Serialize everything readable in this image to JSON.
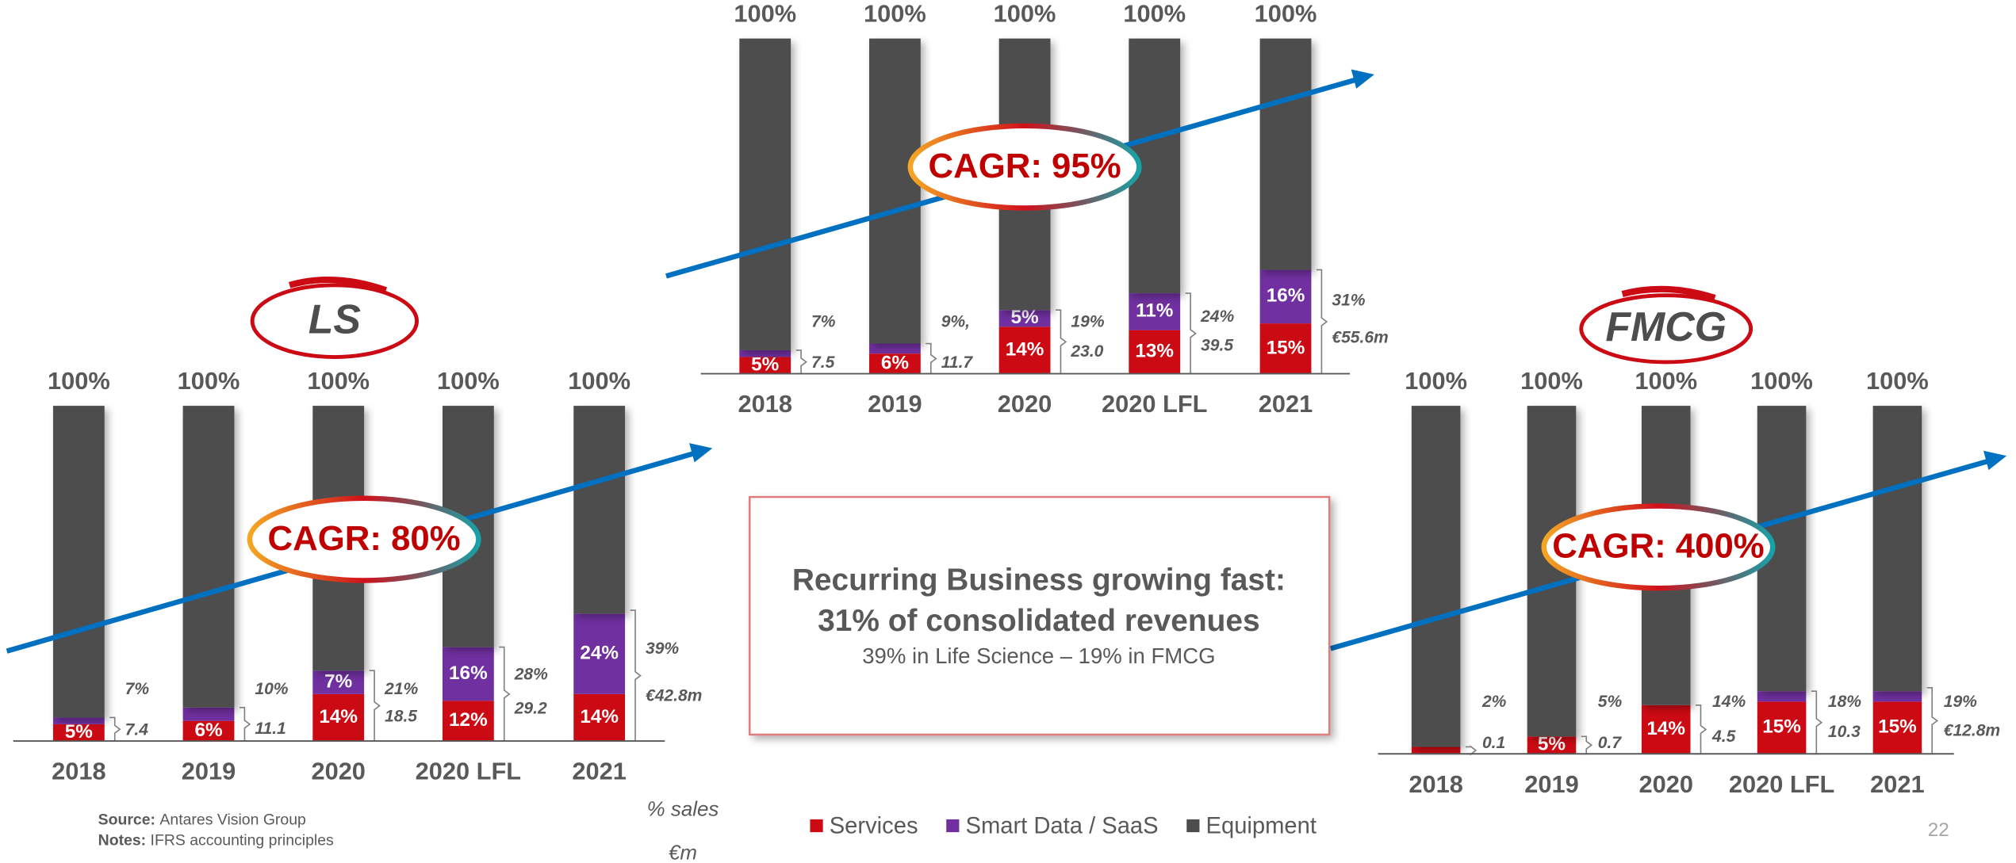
{
  "chart_data": [
    {
      "type": "bar",
      "logo": "LS",
      "annotation": "CAGR: 80%",
      "categories": [
        "2018",
        "2019",
        "2020",
        "2020 LFL",
        "2021"
      ],
      "ylim": [
        0,
        100
      ],
      "series": [
        {
          "color": "#cc0a14",
          "values": [
            5,
            6,
            14,
            12,
            14
          ],
          "value_labels": [
            "5%",
            "6%",
            "14%",
            "12%",
            "14%"
          ]
        },
        {
          "color": "#7030a0",
          "values": [
            2,
            4,
            7,
            16,
            24
          ],
          "value_labels": [
            "2%",
            "4%",
            "7%",
            "16%",
            "24%"
          ]
        },
        {
          "color": "#4d4d4d",
          "values": [
            93,
            90,
            79,
            72,
            62
          ]
        }
      ],
      "totals": {
        "values": [
          100,
          100,
          100,
          100,
          100
        ],
        "value_labels": [
          "100%",
          "100%",
          "100%",
          "100%",
          "100%"
        ]
      },
      "recurring": {
        "values": [
          7,
          10,
          21,
          28,
          39
        ],
        "value_labels": [
          "7%",
          "10%",
          "21%",
          "28%",
          "39%"
        ]
      },
      "revenue": {
        "values": [
          7.4,
          11.1,
          18.5,
          29.2,
          42.8
        ],
        "value_labels": [
          "7.4",
          "11.1",
          "18.5",
          "29.2",
          "€42.8m"
        ]
      }
    },
    {
      "type": "bar",
      "annotation": "CAGR: 95%",
      "categories": [
        "2018",
        "2019",
        "2020",
        "2020 LFL",
        "2021"
      ],
      "ylim": [
        0,
        100
      ],
      "series": [
        {
          "color": "#cc0a14",
          "values": [
            5,
            6,
            14,
            13,
            15
          ],
          "value_labels": [
            "5%",
            "6%",
            "14%",
            "13%",
            "15%"
          ]
        },
        {
          "color": "#7030a0",
          "values": [
            2,
            3,
            5,
            11,
            16
          ],
          "value_labels": [
            "2%",
            "3%",
            "5%",
            "11%",
            "16%"
          ]
        },
        {
          "color": "#4d4d4d",
          "values": [
            93,
            91,
            81,
            76,
            69
          ]
        }
      ],
      "totals": {
        "values": [
          100,
          100,
          100,
          100,
          100
        ],
        "value_labels": [
          "100%",
          "100%",
          "100%",
          "100%",
          "100%"
        ]
      },
      "recurring": {
        "values": [
          7,
          9,
          19,
          24,
          31
        ],
        "value_labels": [
          "7%",
          "9%,",
          "19%",
          "24%",
          "31%"
        ]
      },
      "revenue": {
        "values": [
          7.5,
          11.7,
          23.0,
          39.5,
          55.6
        ],
        "value_labels": [
          "7.5",
          "11.7",
          "23.0",
          "39.5",
          "€55.6m"
        ]
      }
    },
    {
      "type": "bar",
      "logo": "FMCG",
      "annotation": "CAGR: 400%",
      "categories": [
        "2018",
        "2019",
        "2020",
        "2020 LFL",
        "2021"
      ],
      "ylim": [
        0,
        100
      ],
      "series": [
        {
          "color": "#cc0a14",
          "values": [
            2,
            5,
            14,
            15,
            15
          ],
          "value_labels": [
            "2%",
            "5%",
            "14%",
            "15%",
            "15%"
          ]
        },
        {
          "color": "#7030a0",
          "values": [
            0,
            0,
            0,
            3,
            3
          ],
          "value_labels": [
            "0%",
            "0%",
            "0%",
            "3%",
            "3%"
          ]
        },
        {
          "color": "#4d4d4d",
          "values": [
            98,
            95,
            86,
            82,
            82
          ]
        }
      ],
      "totals": {
        "values": [
          100,
          100,
          100,
          100,
          100
        ],
        "value_labels": [
          "100%",
          "100%",
          "100%",
          "100%",
          "100%"
        ]
      },
      "recurring": {
        "values": [
          2,
          5,
          14,
          18,
          19
        ],
        "value_labels": [
          "2%",
          "5%",
          "14%",
          "18%",
          "19%"
        ]
      },
      "revenue": {
        "values": [
          0.1,
          0.7,
          4.5,
          10.3,
          12.8
        ],
        "value_labels": [
          "0.1",
          "0.7",
          "4.5",
          "10.3",
          "€12.8m"
        ]
      }
    }
  ],
  "legend": [
    {
      "name": "Services",
      "color": "#cc0a14"
    },
    {
      "name": "Smart Data / SaaS",
      "color": "#7030a0"
    },
    {
      "name": "Equipment",
      "color": "#4d4d4d"
    }
  ],
  "callout": {
    "title": [
      "Recurring Business growing fast:",
      "31% of consolidated revenues"
    ],
    "subtitle": "39% in Life Science – 19% in FMCG"
  },
  "units": [
    "% sales",
    "€m"
  ],
  "source": {
    "label": "Source:",
    "text": "Antares Vision Group"
  },
  "notes": {
    "label": "Notes:",
    "text": "IFRS accounting principles"
  },
  "page_number": "22"
}
